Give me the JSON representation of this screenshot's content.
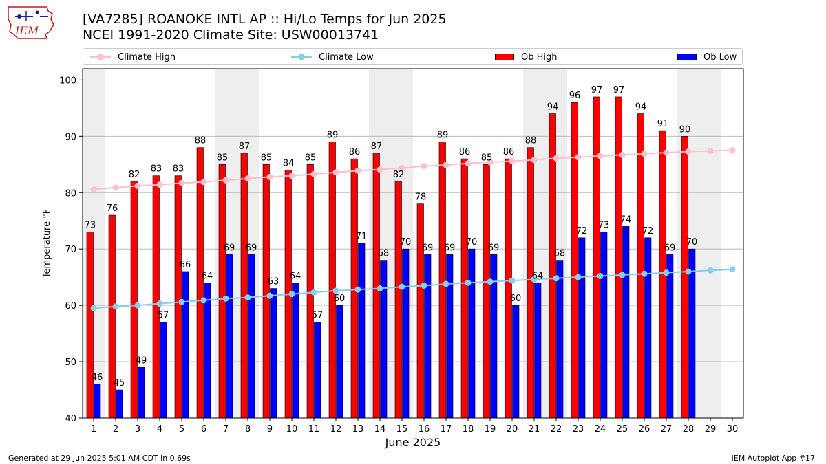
{
  "header": {
    "logo_text": "IEM",
    "title_line1": "[VA7285] ROANOKE INTL AP :: Hi/Lo Temps for Jun 2025",
    "title_line2": "NCEI 1991-2020 Climate Site: USW00013741"
  },
  "legend": {
    "climate_high": "Climate High",
    "climate_low": "Climate Low",
    "ob_high": "Ob High",
    "ob_low": "Ob Low"
  },
  "colors": {
    "climate_high": "#ffc0cb",
    "climate_low": "#87ceeb",
    "ob_high": "#ff0000",
    "ob_low": "#0000ff",
    "weekend_band": "#eeeeee",
    "grid": "#b0b0b0"
  },
  "footer": {
    "left": "Generated at 29 Jun 2025 5:01 AM CDT in 0.69s",
    "right": "IEM Autoplot App #17"
  },
  "chart_data": {
    "type": "bar",
    "xlabel": "June 2025",
    "ylabel": "Temperature °F",
    "ylim": [
      40,
      102
    ],
    "yticks": [
      40,
      50,
      60,
      70,
      80,
      90,
      100
    ],
    "grid": true,
    "legend_position": "top",
    "x": [
      1,
      2,
      3,
      4,
      5,
      6,
      7,
      8,
      9,
      10,
      11,
      12,
      13,
      14,
      15,
      16,
      17,
      18,
      19,
      20,
      21,
      22,
      23,
      24,
      25,
      26,
      27,
      28,
      29,
      30
    ],
    "shaded_days": [
      1,
      7,
      8,
      14,
      15,
      21,
      22,
      28,
      29
    ],
    "series": [
      {
        "name": "Ob High",
        "kind": "bar",
        "values": [
          73,
          76,
          82,
          83,
          83,
          88,
          85,
          87,
          85,
          84,
          85,
          89,
          86,
          87,
          82,
          78,
          89,
          86,
          85,
          86,
          88,
          94,
          96,
          97,
          97,
          94,
          91,
          90,
          null,
          null
        ]
      },
      {
        "name": "Ob Low",
        "kind": "bar",
        "values": [
          46,
          45,
          49,
          57,
          66,
          64,
          69,
          69,
          63,
          64,
          57,
          60,
          71,
          68,
          70,
          69,
          69,
          70,
          69,
          60,
          64,
          68,
          72,
          73,
          74,
          72,
          69,
          70,
          null,
          null
        ]
      },
      {
        "name": "Climate High",
        "kind": "line",
        "values": [
          80.6,
          80.9,
          81.2,
          81.4,
          81.7,
          81.9,
          82.2,
          82.5,
          82.8,
          83.0,
          83.3,
          83.6,
          83.9,
          84.1,
          84.4,
          84.7,
          84.9,
          85.2,
          85.4,
          85.6,
          85.8,
          86.1,
          86.3,
          86.5,
          86.7,
          86.9,
          87.1,
          87.3,
          87.4,
          87.5
        ]
      },
      {
        "name": "Climate Low",
        "kind": "line",
        "values": [
          59.5,
          59.8,
          60.0,
          60.3,
          60.6,
          60.9,
          61.2,
          61.4,
          61.7,
          62.0,
          62.3,
          62.6,
          62.8,
          63.0,
          63.3,
          63.5,
          63.8,
          64.0,
          64.2,
          64.4,
          64.6,
          64.8,
          65.0,
          65.2,
          65.4,
          65.6,
          65.8,
          66.0,
          66.2,
          66.4
        ]
      }
    ]
  }
}
